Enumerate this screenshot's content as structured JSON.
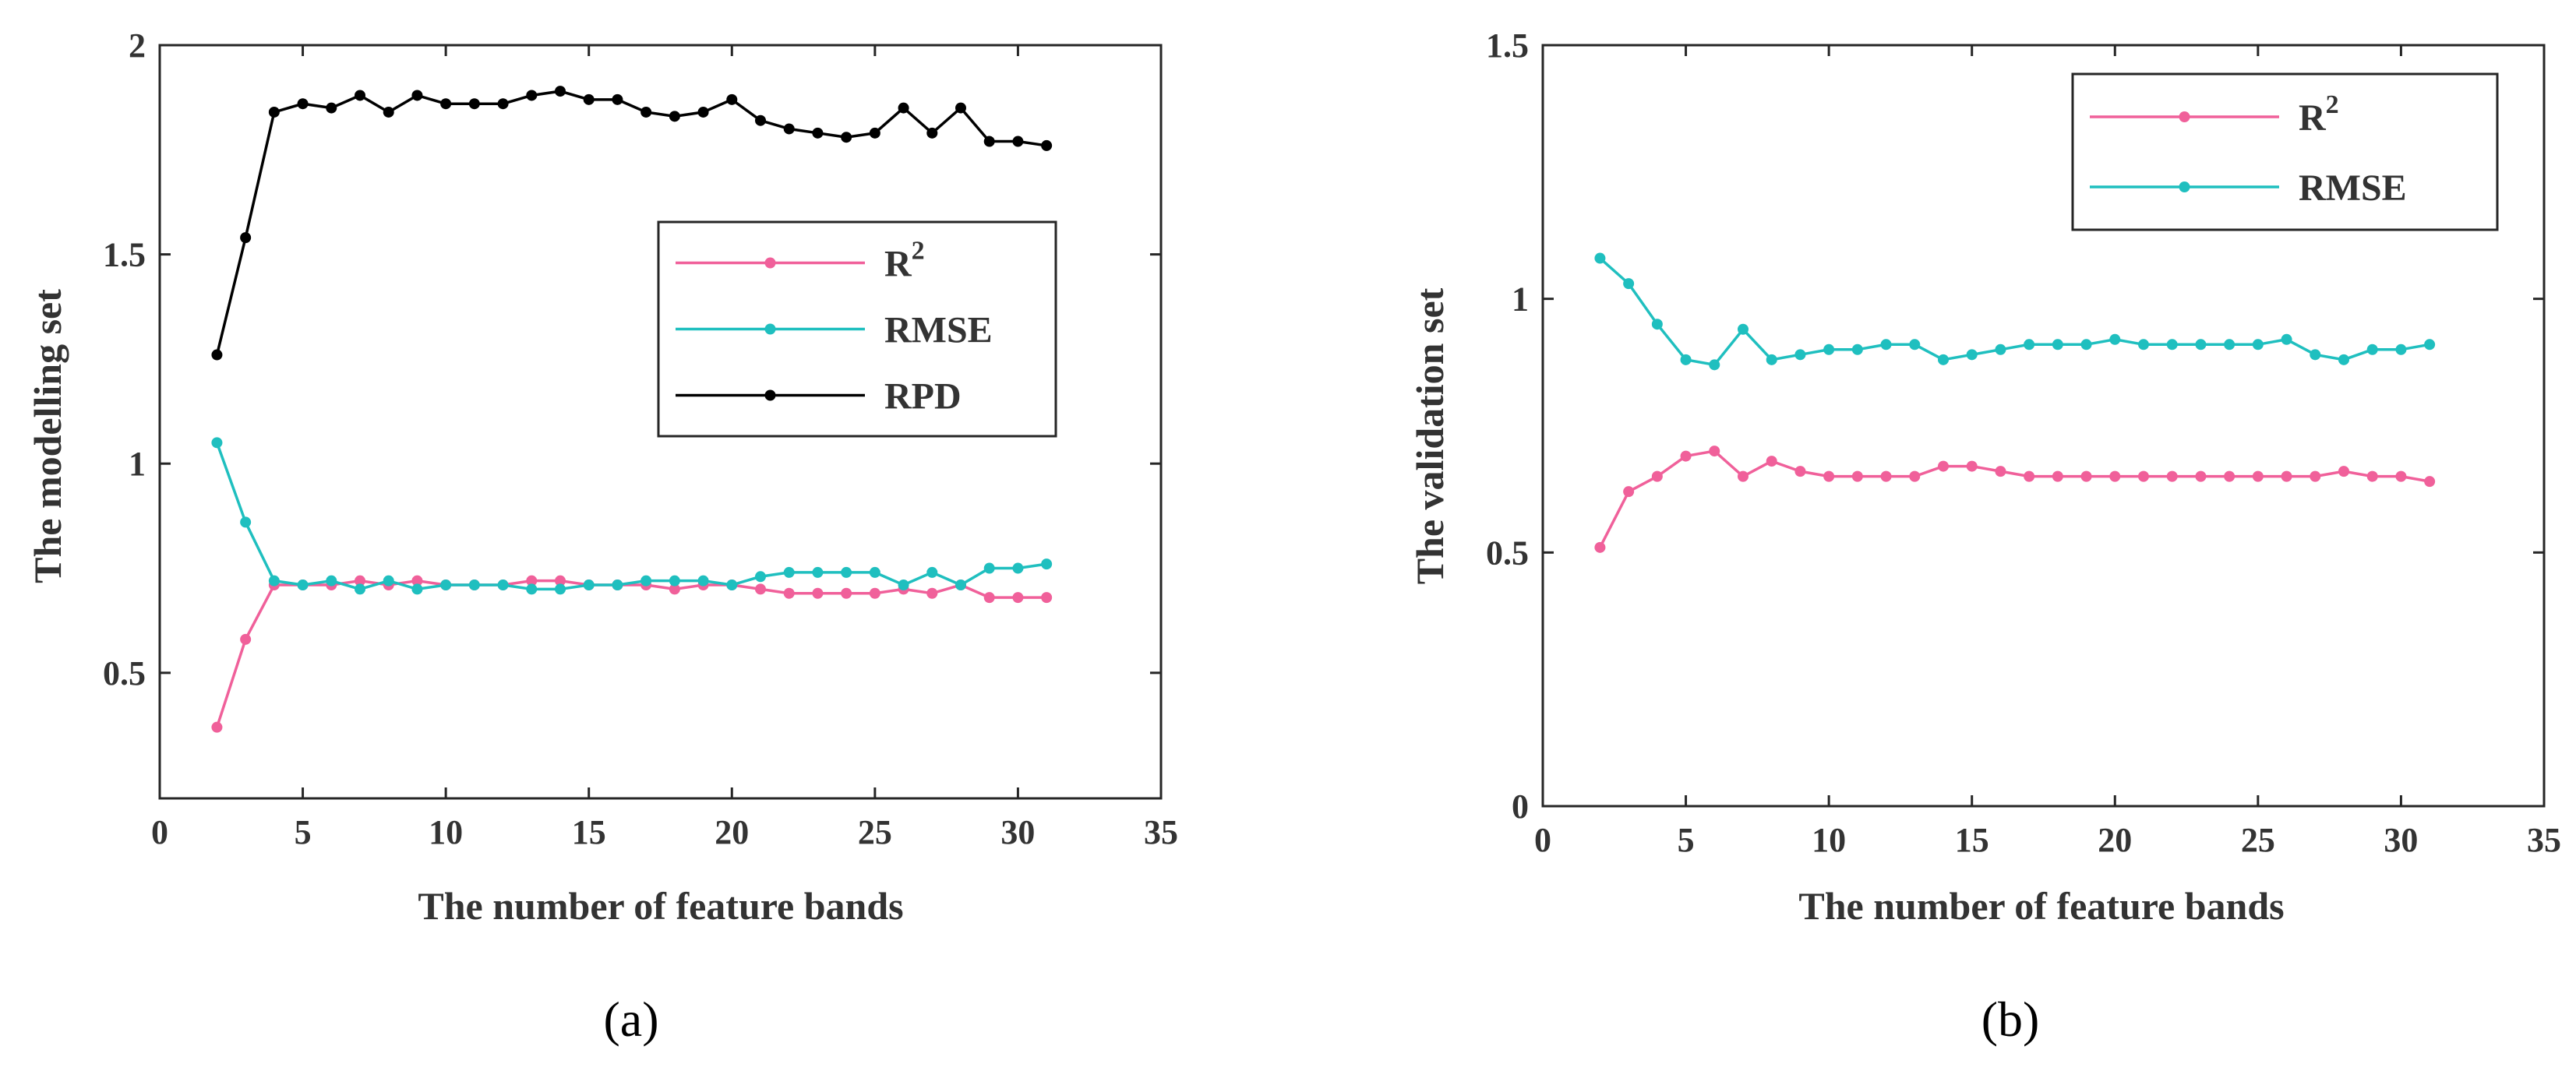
{
  "chart_data": [
    {
      "panel_label": "(a)",
      "type": "line",
      "xlabel": "The number of feature bands",
      "ylabel": "The modelling set",
      "xlim": [
        0,
        35
      ],
      "ylim": [
        0.2,
        2
      ],
      "xticks": [
        0,
        5,
        10,
        15,
        20,
        25,
        30,
        35
      ],
      "yticks": [
        0.5,
        1,
        1.5,
        2
      ],
      "grid": false,
      "legend_position": "middle-right",
      "x": [
        2,
        3,
        4,
        5,
        6,
        7,
        8,
        9,
        10,
        11,
        12,
        13,
        14,
        15,
        16,
        17,
        18,
        19,
        20,
        21,
        22,
        23,
        24,
        25,
        26,
        27,
        28,
        29,
        30,
        31
      ],
      "series": [
        {
          "name": "R",
          "name_sup": "2",
          "color": "#f0609a",
          "values": [
            0.37,
            0.58,
            0.71,
            0.71,
            0.71,
            0.72,
            0.71,
            0.72,
            0.71,
            0.71,
            0.71,
            0.72,
            0.72,
            0.71,
            0.71,
            0.71,
            0.7,
            0.71,
            0.71,
            0.7,
            0.69,
            0.69,
            0.69,
            0.69,
            0.7,
            0.69,
            0.71,
            0.68,
            0.68,
            0.68
          ]
        },
        {
          "name": "RMSE",
          "name_sup": "",
          "color": "#1fbfbf",
          "values": [
            1.05,
            0.86,
            0.72,
            0.71,
            0.72,
            0.7,
            0.72,
            0.7,
            0.71,
            0.71,
            0.71,
            0.7,
            0.7,
            0.71,
            0.71,
            0.72,
            0.72,
            0.72,
            0.71,
            0.73,
            0.74,
            0.74,
            0.74,
            0.74,
            0.71,
            0.74,
            0.71,
            0.75,
            0.75,
            0.76
          ]
        },
        {
          "name": "RPD",
          "name_sup": "",
          "color": "#000000",
          "values": [
            1.26,
            1.54,
            1.84,
            1.86,
            1.85,
            1.88,
            1.84,
            1.88,
            1.86,
            1.86,
            1.86,
            1.88,
            1.89,
            1.87,
            1.87,
            1.84,
            1.83,
            1.84,
            1.87,
            1.82,
            1.8,
            1.79,
            1.78,
            1.79,
            1.85,
            1.79,
            1.85,
            1.77,
            1.77,
            1.76
          ]
        }
      ]
    },
    {
      "panel_label": "(b)",
      "type": "line",
      "xlabel": "The number of feature bands",
      "ylabel": "The validation set",
      "xlim": [
        0,
        35
      ],
      "ylim": [
        0,
        1.5
      ],
      "xticks": [
        0,
        5,
        10,
        15,
        20,
        25,
        30,
        35
      ],
      "yticks": [
        0,
        0.5,
        1,
        1.5
      ],
      "grid": false,
      "legend_position": "top-right",
      "x": [
        2,
        3,
        4,
        5,
        6,
        7,
        8,
        9,
        10,
        11,
        12,
        13,
        14,
        15,
        16,
        17,
        18,
        19,
        20,
        21,
        22,
        23,
        24,
        25,
        26,
        27,
        28,
        29,
        30,
        31
      ],
      "series": [
        {
          "name": "R",
          "name_sup": "2",
          "color": "#f0609a",
          "values": [
            0.51,
            0.62,
            0.65,
            0.69,
            0.7,
            0.65,
            0.68,
            0.66,
            0.65,
            0.65,
            0.65,
            0.65,
            0.67,
            0.67,
            0.66,
            0.65,
            0.65,
            0.65,
            0.65,
            0.65,
            0.65,
            0.65,
            0.65,
            0.65,
            0.65,
            0.65,
            0.66,
            0.65,
            0.65,
            0.64
          ]
        },
        {
          "name": "RMSE",
          "name_sup": "",
          "color": "#1fbfbf",
          "values": [
            1.08,
            1.03,
            0.95,
            0.88,
            0.87,
            0.94,
            0.88,
            0.89,
            0.9,
            0.9,
            0.91,
            0.91,
            0.88,
            0.89,
            0.9,
            0.91,
            0.91,
            0.91,
            0.92,
            0.91,
            0.91,
            0.91,
            0.91,
            0.91,
            0.92,
            0.89,
            0.88,
            0.9,
            0.9,
            0.91
          ]
        }
      ]
    }
  ]
}
